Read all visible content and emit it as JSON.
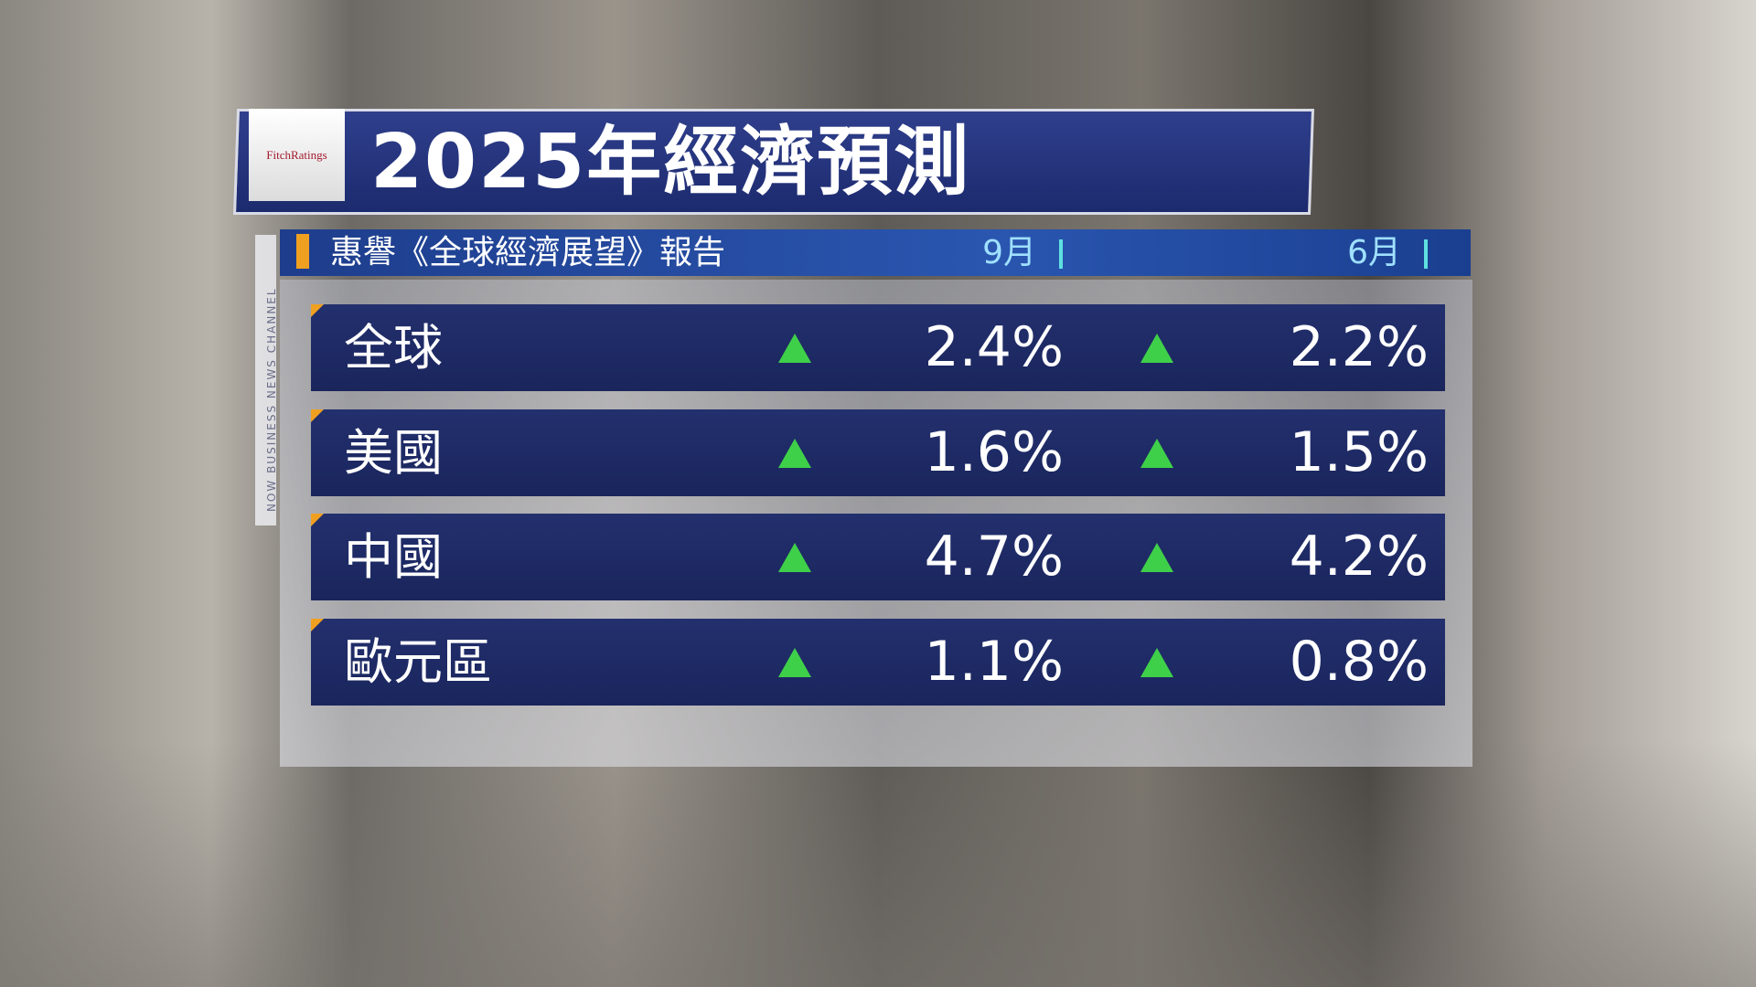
{
  "header": {
    "logo": "FitchRatings",
    "title": "2025年經濟預測"
  },
  "subheader": {
    "title": "惠譽《全球經濟展望》報告",
    "columns": [
      "9月",
      "6月"
    ]
  },
  "channel": "NOW BUSINESS NEWS CHANNEL",
  "table": {
    "rows": [
      [
        "全球",
        "2.4%",
        "2.2%"
      ],
      [
        "美國",
        "1.6%",
        "1.5%"
      ],
      [
        "中國",
        "4.7%",
        "4.2%"
      ],
      [
        "歐元區",
        "1.1%",
        "0.8%"
      ]
    ]
  }
}
